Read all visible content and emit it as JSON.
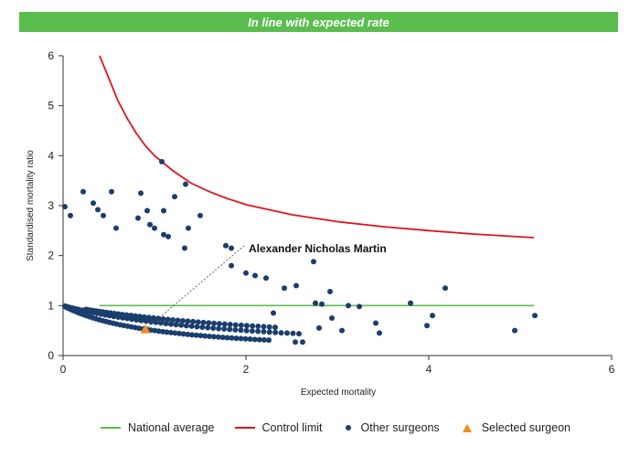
{
  "banner": {
    "text": "In line with expected rate",
    "color": "#5cbd4f"
  },
  "chart_data": {
    "type": "scatter",
    "title": "In line with expected rate",
    "xlabel": "Expected mortality",
    "ylabel": "Standardised mortality ratio",
    "xlim": [
      0,
      6
    ],
    "ylim": [
      0,
      6
    ],
    "xticks": [
      0,
      2,
      4,
      6
    ],
    "yticks": [
      0,
      1,
      2,
      3,
      4,
      5,
      6
    ],
    "grid": false,
    "legend_position": "bottom",
    "national_average": {
      "name": "National average",
      "y": 1,
      "x_range": [
        0.4,
        5.15
      ],
      "color": "#5cbd4f"
    },
    "control_limit": {
      "name": "Control limit",
      "color": "#e0141e",
      "x": [
        0.4,
        0.5,
        0.6,
        0.7,
        0.8,
        0.9,
        1.0,
        1.2,
        1.4,
        1.6,
        1.8,
        2.0,
        2.5,
        3.0,
        3.5,
        4.0,
        4.5,
        5.15
      ],
      "y": [
        6.0,
        5.55,
        5.1,
        4.75,
        4.45,
        4.2,
        4.0,
        3.7,
        3.45,
        3.28,
        3.14,
        3.02,
        2.82,
        2.68,
        2.58,
        2.5,
        2.43,
        2.36
      ]
    },
    "other_surgeons": {
      "name": "Other surgeons",
      "color": "#1a3e6e",
      "curves": [
        {
          "deaths": 1,
          "x_range": [
            0.02,
            2.25
          ],
          "count": 55
        },
        {
          "deaths": 2,
          "x_range": [
            0.02,
            2.58
          ],
          "count": 50
        },
        {
          "deaths": 3,
          "x_range": [
            0.25,
            2.32
          ],
          "count": 42
        }
      ],
      "scattered": [
        [
          0.02,
          2.98
        ],
        [
          0.08,
          2.8
        ],
        [
          0.22,
          3.28
        ],
        [
          0.33,
          3.05
        ],
        [
          0.38,
          2.92
        ],
        [
          0.44,
          2.8
        ],
        [
          0.53,
          3.28
        ],
        [
          0.58,
          2.55
        ],
        [
          0.82,
          2.75
        ],
        [
          0.85,
          3.25
        ],
        [
          0.92,
          2.9
        ],
        [
          0.95,
          2.62
        ],
        [
          1.0,
          2.55
        ],
        [
          1.08,
          3.88
        ],
        [
          1.1,
          2.9
        ],
        [
          1.1,
          2.42
        ],
        [
          1.15,
          2.38
        ],
        [
          1.22,
          3.18
        ],
        [
          1.34,
          3.43
        ],
        [
          1.37,
          2.55
        ],
        [
          1.33,
          2.15
        ],
        [
          1.5,
          2.8
        ],
        [
          1.78,
          2.2
        ],
        [
          1.84,
          2.15
        ],
        [
          1.84,
          1.8
        ],
        [
          2.0,
          1.65
        ],
        [
          2.1,
          1.6
        ],
        [
          2.22,
          1.55
        ],
        [
          2.42,
          1.35
        ],
        [
          2.55,
          1.4
        ],
        [
          2.74,
          1.88
        ],
        [
          2.76,
          1.05
        ],
        [
          2.83,
          1.03
        ],
        [
          2.92,
          1.28
        ],
        [
          2.94,
          0.75
        ],
        [
          3.12,
          1.0
        ],
        [
          3.24,
          0.98
        ],
        [
          3.42,
          0.65
        ],
        [
          3.46,
          0.45
        ],
        [
          3.8,
          1.05
        ],
        [
          3.98,
          0.6
        ],
        [
          4.04,
          0.8
        ],
        [
          4.18,
          1.35
        ],
        [
          4.94,
          0.5
        ],
        [
          5.16,
          0.8
        ],
        [
          2.54,
          0.27
        ],
        [
          2.62,
          0.27
        ],
        [
          2.8,
          0.55
        ],
        [
          3.05,
          0.5
        ],
        [
          2.3,
          0.85
        ]
      ]
    },
    "selected_surgeon": {
      "name": "Selected surgeon",
      "label": "Alexander Nicholas Martin",
      "x": 0.9,
      "y": 0.52,
      "color": "#f28c1e"
    }
  },
  "legend": {
    "national_average": "National average",
    "control_limit": "Control limit",
    "other_surgeons": "Other surgeons",
    "selected_surgeon": "Selected surgeon"
  }
}
